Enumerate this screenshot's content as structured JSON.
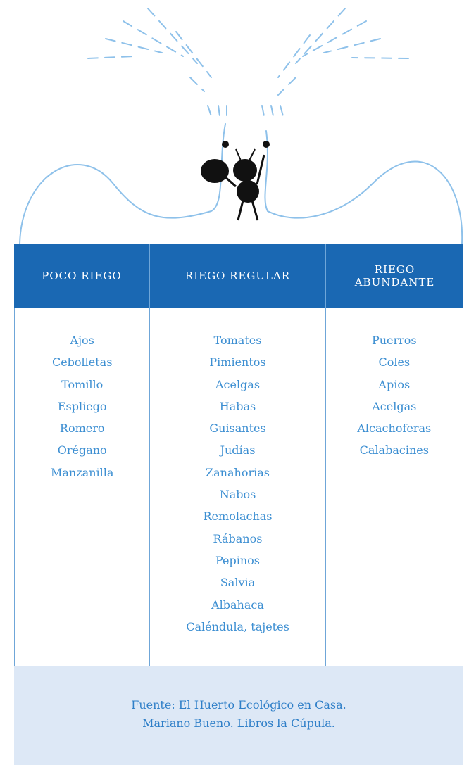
{
  "table": {
    "headers": [
      "POCO RIEGO",
      "RIEGO REGULAR",
      "RIEGO ABUNDANTE"
    ],
    "columns": [
      [
        "Ajos",
        "Cebolletas",
        "Tomillo",
        "Espliego",
        "Romero",
        "Orégano",
        "Manzanilla"
      ],
      [
        "Tomates",
        "Pimientos",
        "Acelgas",
        "Habas",
        "Guisantes",
        "Judías",
        "Zanahorias",
        "Nabos",
        "Remolachas",
        "Rábanos",
        "Pepinos",
        "Salvia",
        "Albahaca",
        "Caléndula, tajetes"
      ],
      [
        "Puerros",
        "Coles",
        "Apios",
        "Acelgas",
        "Alcachoferas",
        "Calabacines"
      ]
    ]
  },
  "source": [
    "Fuente: El Huerto Ecológico en Casa.",
    "Mariano Bueno. Libros la Cúpula."
  ]
}
